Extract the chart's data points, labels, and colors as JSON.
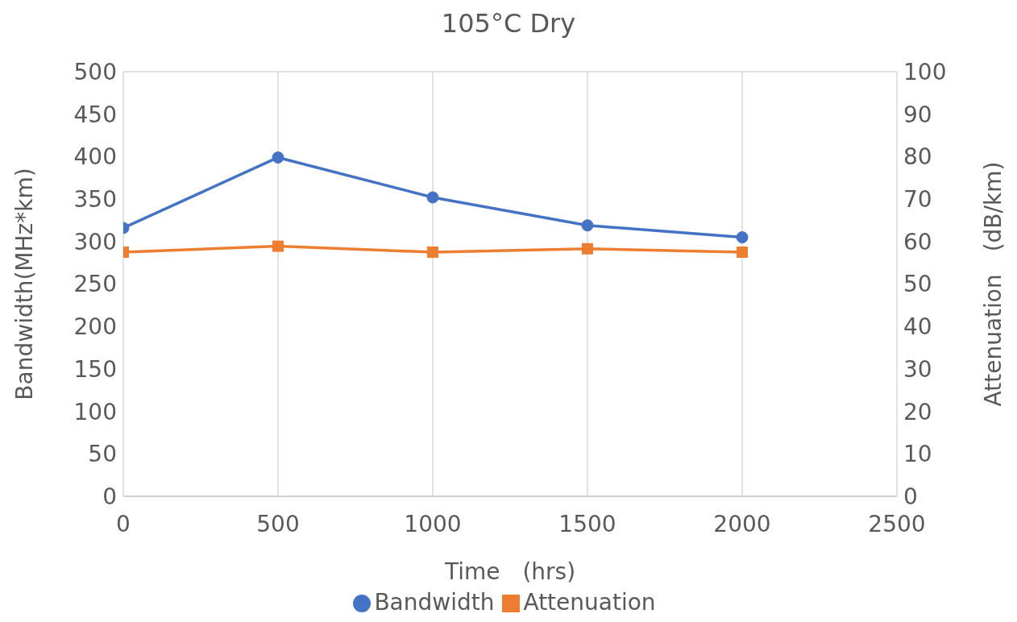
{
  "chart_data": {
    "type": "line",
    "title": "105°C Dry",
    "xlabel": "Time　(hrs)",
    "ylabel": "Bandwidth(MHz*km)",
    "y2label": "Attenuation　(dB/km)",
    "x": [
      0,
      500,
      1000,
      1500,
      2000
    ],
    "series": [
      {
        "name": "Bandwidth",
        "color": "#4472c4",
        "marker": "circle",
        "values": [
          316,
          399,
          352,
          319,
          305
        ]
      },
      {
        "name": "Attenuation",
        "color": "#ed7d31",
        "marker": "square",
        "axis": "y2",
        "values": [
          57.5,
          58.9,
          57.5,
          58.3,
          57.5
        ]
      }
    ],
    "xlim": [
      0,
      2500
    ],
    "xticks": [
      0,
      500,
      1000,
      1500,
      2000,
      2500
    ],
    "ylim": [
      0,
      500
    ],
    "yticks": [
      0,
      50,
      100,
      150,
      200,
      250,
      300,
      350,
      400,
      450,
      500
    ],
    "y2lim": [
      0,
      100
    ],
    "y2ticks": [
      0,
      10,
      20,
      30,
      40,
      50,
      60,
      70,
      80,
      90,
      100
    ],
    "grid": true,
    "legend": "bottom",
    "line_style": "solid"
  }
}
